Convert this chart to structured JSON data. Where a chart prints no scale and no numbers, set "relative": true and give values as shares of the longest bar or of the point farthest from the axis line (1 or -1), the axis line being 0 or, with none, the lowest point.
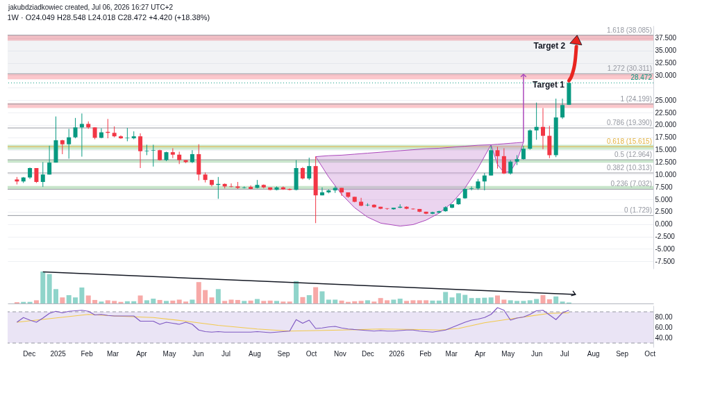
{
  "chart_data": [
    {
      "type": "candlestick",
      "title": "1W · O24.049 H28.548 L24.018 C28.472 +4.420 (+18.38%)",
      "annotations": [
        "jakubdziadkowiec created, Jul 06, 2026 16:27 UTC+2",
        {
          "text": "Target 1",
          "x": "2026-06-14",
          "y": 29.2
        },
        {
          "text": "Target 2",
          "x": "2026-06-15",
          "y": 37.0
        }
      ],
      "x": [
        "2024-11-18",
        "2024-11-25",
        "2024-12-02",
        "2024-12-09",
        "2024-12-16",
        "2024-12-23",
        "2024-12-30",
        "2025-01-06",
        "2025-01-13",
        "2025-01-20",
        "2025-01-27",
        "2025-02-03",
        "2025-02-10",
        "2025-02-17",
        "2025-02-24",
        "2025-03-03",
        "2025-03-10",
        "2025-03-17",
        "2025-03-24",
        "2025-03-31",
        "2025-04-07",
        "2025-04-14",
        "2025-04-21",
        "2025-04-28",
        "2025-05-05",
        "2025-05-12",
        "2025-05-19",
        "2025-05-26",
        "2025-06-02",
        "2025-06-09",
        "2025-06-16",
        "2025-06-23",
        "2025-06-30",
        "2025-07-07",
        "2025-07-14",
        "2025-07-21",
        "2025-07-28",
        "2025-08-04",
        "2025-08-11",
        "2025-08-18",
        "2025-08-25",
        "2025-09-01",
        "2025-09-08",
        "2025-09-15",
        "2025-09-22",
        "2025-09-29",
        "2025-10-06",
        "2025-10-13",
        "2025-10-20",
        "2025-10-27",
        "2025-11-03",
        "2025-11-10",
        "2025-11-17",
        "2025-11-24",
        "2025-12-01",
        "2025-12-08",
        "2025-12-15",
        "2025-12-22",
        "2025-12-29",
        "2026-01-05",
        "2026-01-12",
        "2026-01-19",
        "2026-01-26",
        "2026-02-02",
        "2026-02-09",
        "2026-02-16",
        "2026-02-23",
        "2026-03-02",
        "2026-03-09",
        "2026-03-16",
        "2026-03-23",
        "2026-03-30",
        "2026-04-06",
        "2026-04-13",
        "2026-04-20",
        "2026-04-27",
        "2026-05-04",
        "2026-05-11",
        "2026-05-18",
        "2026-05-25",
        "2026-06-01",
        "2026-06-08",
        "2026-06-15",
        "2026-06-22",
        "2026-06-29",
        "2026-07-06"
      ],
      "ohlc": [
        [
          9.0,
          9.5,
          8.0,
          8.6
        ],
        [
          8.6,
          9.5,
          8.3,
          9.4
        ],
        [
          9.4,
          11.4,
          9.1,
          11.3
        ],
        [
          11.3,
          11.3,
          8.3,
          8.5
        ],
        [
          8.5,
          12.5,
          7.5,
          10.0
        ],
        [
          10.0,
          15.8,
          10.0,
          12.4
        ],
        [
          12.4,
          21.7,
          12.4,
          16.9
        ],
        [
          16.9,
          17.0,
          14.1,
          16.1
        ],
        [
          16.1,
          19.2,
          13.2,
          17.5
        ],
        [
          17.5,
          21.4,
          17.3,
          19.5
        ],
        [
          19.5,
          22.3,
          13.6,
          20.2
        ],
        [
          20.2,
          20.7,
          19.2,
          19.5
        ],
        [
          19.5,
          19.5,
          17.1,
          17.4
        ],
        [
          17.4,
          19.3,
          17.3,
          18.5
        ],
        [
          18.6,
          21.2,
          17.3,
          18.4
        ],
        [
          18.4,
          19.7,
          17.5,
          17.7
        ],
        [
          17.7,
          17.9,
          17.2,
          17.3
        ],
        [
          17.3,
          19.4,
          16.7,
          17.4
        ],
        [
          17.3,
          18.7,
          17.1,
          17.7
        ],
        [
          17.7,
          18.3,
          11.3,
          14.7
        ],
        [
          14.7,
          16.0,
          13.9,
          14.8
        ],
        [
          14.8,
          16.0,
          11.6,
          14.9
        ],
        [
          14.9,
          15.0,
          12.8,
          12.9
        ],
        [
          12.9,
          14.6,
          12.7,
          14.5
        ],
        [
          14.5,
          15.3,
          13.3,
          14.0
        ],
        [
          14.0,
          14.6,
          12.1,
          12.9
        ],
        [
          12.9,
          12.9,
          12.3,
          12.5
        ],
        [
          12.5,
          14.9,
          12.3,
          14.1
        ],
        [
          14.1,
          16.1,
          8.8,
          10.0
        ],
        [
          10.0,
          10.4,
          8.4,
          8.9
        ],
        [
          8.9,
          8.9,
          7.6,
          7.9
        ],
        [
          7.9,
          9.5,
          5.1,
          8.1
        ],
        [
          8.1,
          8.2,
          7.2,
          7.6
        ],
        [
          7.6,
          8.2,
          7.4,
          7.5
        ],
        [
          7.6,
          8.5,
          7.1,
          7.3
        ],
        [
          7.3,
          7.6,
          7.2,
          7.4
        ],
        [
          7.5,
          7.8,
          7.0,
          7.1
        ],
        [
          7.3,
          8.9,
          7.2,
          7.9
        ],
        [
          7.9,
          8.0,
          7.2,
          7.4
        ],
        [
          7.4,
          7.4,
          6.8,
          6.9
        ],
        [
          6.9,
          7.6,
          6.8,
          7.4
        ],
        [
          7.4,
          7.6,
          6.9,
          7.0
        ],
        [
          7.1,
          7.2,
          6.8,
          6.9
        ],
        [
          6.9,
          12.9,
          6.8,
          11.3
        ],
        [
          11.3,
          11.5,
          9.0,
          9.2
        ],
        [
          9.2,
          13.4,
          8.9,
          11.7
        ],
        [
          11.7,
          13.6,
          0.2,
          5.8
        ],
        [
          5.8,
          7.4,
          5.8,
          6.4
        ],
        [
          6.4,
          7.0,
          6.2,
          6.8
        ],
        [
          6.8,
          7.6,
          6.3,
          7.3
        ],
        [
          7.3,
          7.3,
          5.7,
          6.4
        ],
        [
          6.4,
          6.4,
          5.3,
          5.5
        ],
        [
          5.5,
          5.5,
          4.4,
          4.5
        ],
        [
          4.5,
          5.3,
          3.6,
          3.7
        ],
        [
          3.8,
          4.2,
          3.6,
          3.9
        ],
        [
          3.9,
          4.0,
          3.3,
          3.4
        ],
        [
          3.5,
          3.5,
          3.0,
          3.1
        ],
        [
          3.2,
          3.2,
          2.9,
          3.1
        ],
        [
          3.0,
          3.3,
          2.9,
          3.3
        ],
        [
          3.3,
          4.0,
          3.2,
          3.5
        ],
        [
          3.5,
          3.6,
          3.0,
          3.1
        ],
        [
          3.1,
          3.2,
          2.9,
          3.0
        ],
        [
          3.05,
          3.05,
          2.4,
          2.5
        ],
        [
          2.5,
          2.5,
          2.0,
          2.1
        ],
        [
          2.1,
          2.5,
          2.0,
          2.4
        ],
        [
          2.3,
          2.7,
          2.2,
          2.6
        ],
        [
          2.6,
          3.6,
          2.5,
          3.4
        ],
        [
          3.3,
          4.0,
          3.2,
          4.0
        ],
        [
          4.0,
          5.2,
          3.9,
          5.2
        ],
        [
          5.2,
          7.2,
          5.1,
          7.1
        ],
        [
          7.1,
          7.6,
          6.8,
          7.2
        ],
        [
          7.2,
          9.1,
          6.9,
          8.6
        ],
        [
          8.6,
          10.3,
          6.8,
          9.8
        ],
        [
          9.8,
          15.8,
          9.8,
          14.9
        ],
        [
          14.9,
          15.6,
          11.2,
          13.7
        ],
        [
          13.7,
          15.3,
          10.1,
          10.2
        ],
        [
          10.2,
          12.9,
          10.0,
          12.6
        ],
        [
          12.6,
          13.9,
          11.9,
          13.1
        ],
        [
          13.1,
          15.8,
          13.0,
          15.2
        ],
        [
          15.2,
          19.1,
          15.0,
          18.9
        ],
        [
          18.9,
          24.5,
          17.0,
          19.6
        ],
        [
          19.6,
          23.4,
          15.1,
          17.8
        ],
        [
          17.8,
          19.8,
          13.3,
          13.9
        ],
        [
          13.9,
          25.3,
          13.5,
          21.5
        ],
        [
          21.5,
          25.3,
          21.2,
          24.0
        ],
        [
          24.049,
          28.548,
          24.018,
          28.472
        ]
      ],
      "colors": [
        "#f23645",
        "#089981",
        "#089981",
        "#f23645",
        "#089981",
        "#089981",
        "#089981",
        "#f23645",
        "#089981",
        "#089981",
        "#089981",
        "#f23645",
        "#f23645",
        "#089981",
        "#f23645",
        "#f23645",
        "#f23645",
        "#089981",
        "#089981",
        "#f23645",
        "#089981",
        "#089981",
        "#f23645",
        "#089981",
        "#f23645",
        "#f23645",
        "#f23645",
        "#089981",
        "#f23645",
        "#f23645",
        "#f23645",
        "#089981",
        "#f23645",
        "#f23645",
        "#f23645",
        "#089981",
        "#f23645",
        "#089981",
        "#f23645",
        "#f23645",
        "#089981",
        "#f23645",
        "#f23645",
        "#089981",
        "#f23645",
        "#089981",
        "#f23645",
        "#089981",
        "#089981",
        "#089981",
        "#f23645",
        "#f23645",
        "#f23645",
        "#f23645",
        "#089981",
        "#f23645",
        "#f23645",
        "#f23645",
        "#089981",
        "#089981",
        "#f23645",
        "#f23645",
        "#f23645",
        "#f23645",
        "#089981",
        "#089981",
        "#089981",
        "#089981",
        "#089981",
        "#089981",
        "#089981",
        "#089981",
        "#089981",
        "#089981",
        "#f23645",
        "#f23645",
        "#089981",
        "#089981",
        "#089981",
        "#089981",
        "#089981",
        "#f23645",
        "#f23645",
        "#089981",
        "#089981",
        "#089981"
      ],
      "xlim": [
        "2024-11-08",
        "2026-10-05"
      ],
      "ylim": [
        -9,
        40
      ],
      "yticks": [
        {
          "value": -7.5,
          "label": "-7.500"
        },
        {
          "value": -5,
          "label": "-5.000"
        },
        {
          "value": -2.5,
          "label": "-2.500"
        },
        {
          "value": 0,
          "label": "0.000"
        },
        {
          "value": 2.5,
          "label": "2.500"
        },
        {
          "value": 5,
          "label": "5.000"
        },
        {
          "value": 7.5,
          "label": "7.500"
        },
        {
          "value": 10,
          "label": "10.000"
        },
        {
          "value": 12.5,
          "label": "12.500"
        },
        {
          "value": 15,
          "label": "15.000"
        },
        {
          "value": 17.5,
          "label": "17.500"
        },
        {
          "value": 20,
          "label": "20.000"
        },
        {
          "value": 22.5,
          "label": "22.500"
        },
        {
          "value": 25,
          "label": "25.000"
        },
        {
          "value": 27.5,
          "label": null
        },
        {
          "value": 30,
          "label": "30.000"
        },
        {
          "value": 32.5,
          "label": "32.500"
        },
        {
          "value": 35,
          "label": "35.000"
        },
        {
          "value": 37.5,
          "label": "37.500"
        }
      ],
      "ref_lines": [
        {
          "axis": "y",
          "value": 1.729,
          "label": "0 (1.729)",
          "color": "#9598a1"
        },
        {
          "axis": "y",
          "value": 7.032,
          "label": "0.236 (7.032)",
          "color": "#9598a1"
        },
        {
          "axis": "y",
          "value": 10.313,
          "label": "0.382 (10.313)",
          "color": "#9598a1"
        },
        {
          "axis": "y",
          "value": 12.964,
          "label": "0.5 (12.964)",
          "color": "#9598a1"
        },
        {
          "axis": "y",
          "value": 15.615,
          "label": "0.618 (15.615)",
          "color": "#e3b341"
        },
        {
          "axis": "y",
          "value": 19.39,
          "label": "0.786 (19.390)",
          "color": "#9598a1"
        },
        {
          "axis": "y",
          "value": 24.199,
          "label": "1 (24.199)",
          "color": "#9598a1"
        },
        {
          "axis": "y",
          "value": 30.311,
          "label": "1.272 (30.311)",
          "color": "#9598a1"
        },
        {
          "axis": "y",
          "value": 38.085,
          "label": "1.618 (38.085)",
          "color": "#9598a1"
        },
        {
          "axis": "y",
          "value": 28.472,
          "label": "28.472",
          "color": "#089981",
          "line_style": "dotted"
        }
      ],
      "bands": [
        {
          "axis": "y",
          "from": 30.311,
          "to": 38.085,
          "color": "#d1d4dc"
        },
        {
          "axis": "y",
          "from": 37.0,
          "to": 38.1,
          "color": "#f23645"
        },
        {
          "axis": "y",
          "from": 29.2,
          "to": 30.3,
          "color": "#f23645"
        },
        {
          "axis": "y",
          "from": 23.4,
          "to": 24.4,
          "color": "#f23645"
        },
        {
          "axis": "y",
          "from": 15.0,
          "to": 16.0,
          "color": "#4caf50"
        },
        {
          "axis": "y",
          "from": 12.4,
          "to": 13.0,
          "color": "#4caf50"
        },
        {
          "axis": "y",
          "from": 7.1,
          "to": 7.7,
          "color": "#4caf50"
        }
      ],
      "grid": true,
      "tick_labels": "y"
    },
    {
      "type": "bar",
      "relative": true,
      "tick_labels": false,
      "xlim": [
        "2024-11-08",
        "2026-10-05"
      ],
      "series": [
        {
          "type": "line",
          "color": "#131722",
          "x": [
            "2024-12-16",
            "2026-07-13"
          ],
          "values": [
            0.99,
            0.28
          ]
        }
      ],
      "x": [
        "2024-11-18",
        "2024-11-25",
        "2024-12-02",
        "2024-12-09",
        "2024-12-16",
        "2024-12-23",
        "2024-12-30",
        "2025-01-06",
        "2025-01-13",
        "2025-01-20",
        "2025-01-27",
        "2025-02-03",
        "2025-02-10",
        "2025-02-17",
        "2025-02-24",
        "2025-03-03",
        "2025-03-10",
        "2025-03-17",
        "2025-03-24",
        "2025-03-31",
        "2025-04-07",
        "2025-04-14",
        "2025-04-21",
        "2025-04-28",
        "2025-05-05",
        "2025-05-12",
        "2025-05-19",
        "2025-05-26",
        "2025-06-02",
        "2025-06-09",
        "2025-06-16",
        "2025-06-23",
        "2025-06-30",
        "2025-07-07",
        "2025-07-14",
        "2025-07-21",
        "2025-07-28",
        "2025-08-04",
        "2025-08-11",
        "2025-08-18",
        "2025-08-25",
        "2025-09-01",
        "2025-09-08",
        "2025-09-15",
        "2025-09-22",
        "2025-09-29",
        "2025-10-06",
        "2025-10-13",
        "2025-10-20",
        "2025-10-27",
        "2025-11-03",
        "2025-11-10",
        "2025-11-17",
        "2025-11-24",
        "2025-12-01",
        "2025-12-08",
        "2025-12-15",
        "2025-12-22",
        "2025-12-29",
        "2026-01-05",
        "2026-01-12",
        "2026-01-19",
        "2026-01-26",
        "2026-02-02",
        "2026-02-09",
        "2026-02-16",
        "2026-02-23",
        "2026-03-02",
        "2026-03-09",
        "2026-03-16",
        "2026-03-23",
        "2026-03-30",
        "2026-04-06",
        "2026-04-13",
        "2026-04-20",
        "2026-04-27",
        "2026-05-04",
        "2026-05-11",
        "2026-05-18",
        "2026-05-25",
        "2026-06-01",
        "2026-06-08",
        "2026-06-15",
        "2026-06-22",
        "2026-06-29",
        "2026-07-06"
      ],
      "values": [
        0.04,
        0.05,
        0.05,
        0.1,
        1,
        0.92,
        0.45,
        0.19,
        0.26,
        0.19,
        0.5,
        0.25,
        0.11,
        0.06,
        0.1,
        0.08,
        0.05,
        0.07,
        0.07,
        0.25,
        0.1,
        0.15,
        0.11,
        0.08,
        0.09,
        0.12,
        0.06,
        0.12,
        0.67,
        0.42,
        0.19,
        0.45,
        0.08,
        0.12,
        0.11,
        0.08,
        0.09,
        0.14,
        0.08,
        0.09,
        0.08,
        0.06,
        0.06,
        0.7,
        0.2,
        0.26,
        0.51,
        0.38,
        0.12,
        0.12,
        0.09,
        0.05,
        0.07,
        0.08,
        0.1,
        0.06,
        0.17,
        0.1,
        0.12,
        0.15,
        0.08,
        0.1,
        0.1,
        0.1,
        0.09,
        0.09,
        0.36,
        0.19,
        0.32,
        0.27,
        0.17,
        0.17,
        0.18,
        0.19,
        0.25,
        0.12,
        0.1,
        0.08,
        0.08,
        0.1,
        0.14,
        0.26,
        0.13,
        0.22,
        0.06,
        0.03
      ],
      "colors": [
        "#f7a9a7",
        "#8fd4ca",
        "#8fd4ca",
        "#f7a9a7",
        "#8fd4ca",
        "#8fd4ca",
        "#8fd4ca",
        "#f7a9a7",
        "#8fd4ca",
        "#8fd4ca",
        "#8fd4ca",
        "#f7a9a7",
        "#f7a9a7",
        "#8fd4ca",
        "#f7a9a7",
        "#f7a9a7",
        "#f7a9a7",
        "#8fd4ca",
        "#8fd4ca",
        "#f7a9a7",
        "#8fd4ca",
        "#8fd4ca",
        "#f7a9a7",
        "#8fd4ca",
        "#f7a9a7",
        "#f7a9a7",
        "#f7a9a7",
        "#8fd4ca",
        "#f7a9a7",
        "#f7a9a7",
        "#f7a9a7",
        "#8fd4ca",
        "#f7a9a7",
        "#f7a9a7",
        "#f7a9a7",
        "#8fd4ca",
        "#f7a9a7",
        "#8fd4ca",
        "#f7a9a7",
        "#f7a9a7",
        "#8fd4ca",
        "#f7a9a7",
        "#f7a9a7",
        "#8fd4ca",
        "#f7a9a7",
        "#8fd4ca",
        "#f7a9a7",
        "#8fd4ca",
        "#8fd4ca",
        "#8fd4ca",
        "#f7a9a7",
        "#f7a9a7",
        "#f7a9a7",
        "#f7a9a7",
        "#8fd4ca",
        "#f7a9a7",
        "#f7a9a7",
        "#f7a9a7",
        "#8fd4ca",
        "#8fd4ca",
        "#f7a9a7",
        "#f7a9a7",
        "#f7a9a7",
        "#f7a9a7",
        "#8fd4ca",
        "#8fd4ca",
        "#8fd4ca",
        "#8fd4ca",
        "#8fd4ca",
        "#8fd4ca",
        "#8fd4ca",
        "#8fd4ca",
        "#8fd4ca",
        "#8fd4ca",
        "#f7a9a7",
        "#f7a9a7",
        "#8fd4ca",
        "#8fd4ca",
        "#8fd4ca",
        "#8fd4ca",
        "#8fd4ca",
        "#f7a9a7",
        "#f7a9a7",
        "#8fd4ca",
        "#8fd4ca",
        "#8fd4ca"
      ]
    },
    {
      "type": "line",
      "xlim": [
        "2024-11-08",
        "2026-10-05"
      ],
      "xticks": [
        {
          "value": "2024-12-01",
          "label": "Dec"
        },
        {
          "value": "2025-01-01",
          "label": "2025"
        },
        {
          "value": "2025-02-01",
          "label": "Feb"
        },
        {
          "value": "2025-03-01",
          "label": "Mar"
        },
        {
          "value": "2025-04-01",
          "label": "Apr"
        },
        {
          "value": "2025-05-01",
          "label": "May"
        },
        {
          "value": "2025-06-01",
          "label": "Jun"
        },
        {
          "value": "2025-07-01",
          "label": "Jul"
        },
        {
          "value": "2025-08-01",
          "label": "Aug"
        },
        {
          "value": "2025-09-01",
          "label": "Sep"
        },
        {
          "value": "2025-10-01",
          "label": "Oct"
        },
        {
          "value": "2025-11-01",
          "label": "Nov"
        },
        {
          "value": "2025-12-01",
          "label": "Dec"
        },
        {
          "value": "2026-01-01",
          "label": "2026"
        },
        {
          "value": "2026-02-01",
          "label": "Feb"
        },
        {
          "value": "2026-03-01",
          "label": "Mar"
        },
        {
          "value": "2026-04-01",
          "label": "Apr"
        },
        {
          "value": "2026-05-01",
          "label": "May"
        },
        {
          "value": "2026-06-01",
          "label": "Jun"
        },
        {
          "value": "2026-07-01",
          "label": "Jul"
        },
        {
          "value": "2026-08-01",
          "label": "Aug"
        },
        {
          "value": "2026-09-01",
          "label": "Sep"
        },
        {
          "value": "2026-10-01",
          "label": "Oct"
        }
      ],
      "ylim": [
        22,
        102
      ],
      "yticks": [
        {
          "value": 40,
          "label": "40.00"
        },
        {
          "value": 60,
          "label": "60.00"
        },
        {
          "value": 80,
          "label": "80.00"
        }
      ],
      "x": [
        "2024-11-18",
        "2024-11-25",
        "2024-12-02",
        "2024-12-09",
        "2024-12-16",
        "2024-12-23",
        "2024-12-30",
        "2025-01-06",
        "2025-01-13",
        "2025-01-20",
        "2025-01-27",
        "2025-02-03",
        "2025-02-10",
        "2025-02-17",
        "2025-02-24",
        "2025-03-03",
        "2025-03-10",
        "2025-03-17",
        "2025-03-24",
        "2025-03-31",
        "2025-04-07",
        "2025-04-14",
        "2025-04-21",
        "2025-04-28",
        "2025-05-05",
        "2025-05-12",
        "2025-05-19",
        "2025-05-26",
        "2025-06-02",
        "2025-06-09",
        "2025-06-16",
        "2025-06-23",
        "2025-06-30",
        "2025-07-07",
        "2025-07-14",
        "2025-07-21",
        "2025-07-28",
        "2025-08-04",
        "2025-08-11",
        "2025-08-18",
        "2025-08-25",
        "2025-09-01",
        "2025-09-08",
        "2025-09-15",
        "2025-09-22",
        "2025-09-29",
        "2025-10-06",
        "2025-10-13",
        "2025-10-20",
        "2025-10-27",
        "2025-11-03",
        "2025-11-10",
        "2025-11-17",
        "2025-11-24",
        "2025-12-01",
        "2025-12-08",
        "2025-12-15",
        "2025-12-22",
        "2025-12-29",
        "2026-01-05",
        "2026-01-12",
        "2026-01-19",
        "2026-01-26",
        "2026-02-02",
        "2026-02-09",
        "2026-02-16",
        "2026-02-23",
        "2026-03-02",
        "2026-03-09",
        "2026-03-16",
        "2026-03-23",
        "2026-03-30",
        "2026-04-06",
        "2026-04-13",
        "2026-04-20",
        "2026-04-27",
        "2026-05-04",
        "2026-05-11",
        "2026-05-18",
        "2026-05-25",
        "2026-06-01",
        "2026-06-08",
        "2026-06-15",
        "2026-06-22",
        "2026-06-29",
        "2026-07-06"
      ],
      "series": [
        {
          "color": "#7e57c2",
          "values": [
            70,
            79,
            74,
            70,
            78,
            87,
            91,
            88,
            91,
            92,
            93,
            91,
            84,
            85,
            83,
            82,
            82,
            82,
            82,
            72,
            72,
            72,
            66,
            70,
            68,
            66,
            70,
            66,
            55,
            52,
            51,
            52,
            51,
            51,
            51,
            51,
            51,
            52,
            51,
            50,
            51,
            52,
            53,
            75,
            68,
            74,
            58,
            59,
            61,
            62,
            59,
            57,
            56,
            55,
            54,
            53,
            54,
            53,
            53,
            54,
            55,
            55,
            53,
            52,
            51,
            53,
            55,
            60,
            65,
            70,
            74,
            76,
            79,
            85,
            98,
            93,
            74,
            78,
            80,
            85,
            92,
            93,
            84,
            75,
            88,
            93
          ]
        },
        {
          "color": "#f2c94c",
          "x": [
            "2024-11-18",
            "2025-02-03",
            "2025-03-03",
            "2025-04-14",
            "2025-05-19",
            "2025-06-23",
            "2025-08-04",
            "2025-09-08",
            "2025-11-03",
            "2025-12-15",
            "2026-01-26",
            "2026-02-16",
            "2026-03-09",
            "2026-04-06",
            "2026-05-18",
            "2026-06-15",
            "2026-07-06"
          ],
          "values": [
            70,
            85,
            82,
            79,
            72,
            64,
            57,
            53,
            55,
            57,
            56,
            55,
            58,
            69,
            80,
            87,
            88
          ]
        }
      ],
      "bands": [
        {
          "axis": "y",
          "from": 30,
          "to": 90,
          "color": "#b39ddb"
        }
      ],
      "ref_lines": [
        {
          "axis": "y",
          "value": 30,
          "color": "#9598a1",
          "line_style": "dashed"
        },
        {
          "axis": "y",
          "value": 90,
          "color": "#9598a1",
          "line_style": "dashed"
        }
      ]
    }
  ]
}
